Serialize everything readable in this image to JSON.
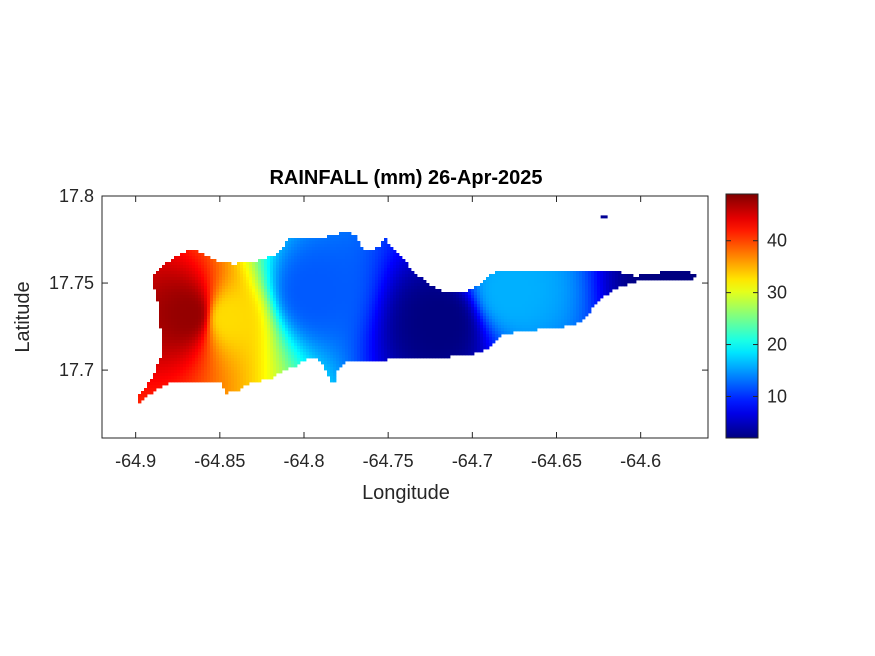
{
  "chart_data": {
    "type": "heatmap",
    "title": "RAINFALL (mm) 26-Apr-2025",
    "xlabel": "Longitude",
    "ylabel": "Latitude",
    "xlim": [
      -64.92,
      -64.56
    ],
    "ylim": [
      17.661,
      17.8
    ],
    "xticks": [
      -64.9,
      -64.85,
      -64.8,
      -64.75,
      -64.7,
      -64.65,
      -64.6
    ],
    "xtick_labels": [
      "-64.9",
      "-64.85",
      "-64.8",
      "-64.75",
      "-64.7",
      "-64.65",
      "-64.6"
    ],
    "yticks": [
      17.7,
      17.75,
      17.8
    ],
    "ytick_labels": [
      "17.7",
      "17.75",
      "17.8"
    ],
    "colormap": "jet",
    "colorbar": {
      "min": 2,
      "max": 49,
      "ticks": [
        10,
        20,
        30,
        40
      ],
      "tick_labels": [
        "10",
        "20",
        "30",
        "40"
      ]
    },
    "grid": false,
    "region_outline": [
      [
        -64.9,
        17.68
      ],
      [
        -64.892,
        17.686
      ],
      [
        -64.886,
        17.69
      ],
      [
        -64.88,
        17.693
      ],
      [
        -64.868,
        17.693
      ],
      [
        -64.86,
        17.693
      ],
      [
        -64.85,
        17.693
      ],
      [
        -64.846,
        17.687
      ],
      [
        -64.84,
        17.688
      ],
      [
        -64.832,
        17.693
      ],
      [
        -64.82,
        17.695
      ],
      [
        -64.812,
        17.7
      ],
      [
        -64.804,
        17.703
      ],
      [
        -64.799,
        17.706
      ],
      [
        -64.793,
        17.708
      ],
      [
        -64.79,
        17.705
      ],
      [
        -64.787,
        17.7
      ],
      [
        -64.785,
        17.695
      ],
      [
        -64.782,
        17.692
      ],
      [
        -64.78,
        17.7
      ],
      [
        -64.776,
        17.705
      ],
      [
        -64.77,
        17.705
      ],
      [
        -64.763,
        17.706
      ],
      [
        -64.752,
        17.706
      ],
      [
        -64.74,
        17.707
      ],
      [
        -64.725,
        17.707
      ],
      [
        -64.71,
        17.708
      ],
      [
        -64.7,
        17.709
      ],
      [
        -64.69,
        17.713
      ],
      [
        -64.682,
        17.72
      ],
      [
        -64.675,
        17.722
      ],
      [
        -64.665,
        17.723
      ],
      [
        -64.655,
        17.724
      ],
      [
        -64.645,
        17.725
      ],
      [
        -64.637,
        17.727
      ],
      [
        -64.63,
        17.734
      ],
      [
        -64.623,
        17.742
      ],
      [
        -64.613,
        17.748
      ],
      [
        -64.602,
        17.751
      ],
      [
        -64.588,
        17.751
      ],
      [
        -64.572,
        17.751
      ],
      [
        -64.566,
        17.755
      ],
      [
        -64.575,
        17.757
      ],
      [
        -64.59,
        17.756
      ],
      [
        -64.603,
        17.754
      ],
      [
        -64.612,
        17.756
      ],
      [
        -64.62,
        17.757
      ],
      [
        -64.64,
        17.757
      ],
      [
        -64.66,
        17.757
      ],
      [
        -64.678,
        17.757
      ],
      [
        -64.688,
        17.756
      ],
      [
        -64.692,
        17.753
      ],
      [
        -64.697,
        17.748
      ],
      [
        -64.705,
        17.745
      ],
      [
        -64.715,
        17.744
      ],
      [
        -64.72,
        17.746
      ],
      [
        -64.727,
        17.75
      ],
      [
        -64.733,
        17.755
      ],
      [
        -64.738,
        17.76
      ],
      [
        -64.743,
        17.766
      ],
      [
        -64.748,
        17.77
      ],
      [
        -64.752,
        17.776
      ],
      [
        -64.755,
        17.771
      ],
      [
        -64.761,
        17.769
      ],
      [
        -64.765,
        17.77
      ],
      [
        -64.77,
        17.778
      ],
      [
        -64.775,
        17.779
      ],
      [
        -64.782,
        17.778
      ],
      [
        -64.79,
        17.776
      ],
      [
        -64.8,
        17.776
      ],
      [
        -64.81,
        17.776
      ],
      [
        -64.812,
        17.77
      ],
      [
        -64.818,
        17.766
      ],
      [
        -64.824,
        17.764
      ],
      [
        -64.832,
        17.762
      ],
      [
        -64.842,
        17.761
      ],
      [
        -64.85,
        17.762
      ],
      [
        -64.856,
        17.765
      ],
      [
        -64.862,
        17.768
      ],
      [
        -64.868,
        17.769
      ],
      [
        -64.875,
        17.766
      ],
      [
        -64.884,
        17.76
      ],
      [
        -64.89,
        17.755
      ],
      [
        -64.889,
        17.748
      ],
      [
        -64.887,
        17.74
      ],
      [
        -64.886,
        17.732
      ],
      [
        -64.885,
        17.722
      ],
      [
        -64.884,
        17.712
      ],
      [
        -64.886,
        17.705
      ],
      [
        -64.891,
        17.694
      ],
      [
        -64.898,
        17.686
      ]
    ],
    "rainfall_centers": [
      {
        "lon": -64.868,
        "lat": 17.732,
        "mm": 48
      },
      {
        "lon": -64.845,
        "lat": 17.73,
        "mm": 33
      },
      {
        "lon": -64.795,
        "lat": 17.745,
        "mm": 12
      },
      {
        "lon": -64.718,
        "lat": 17.728,
        "mm": 2
      },
      {
        "lon": -64.678,
        "lat": 17.745,
        "mm": 16
      },
      {
        "lon": -64.575,
        "lat": 17.752,
        "mm": 2
      }
    ],
    "extra_point": {
      "lon": -64.622,
      "lat": 17.788,
      "mm": 3
    }
  }
}
